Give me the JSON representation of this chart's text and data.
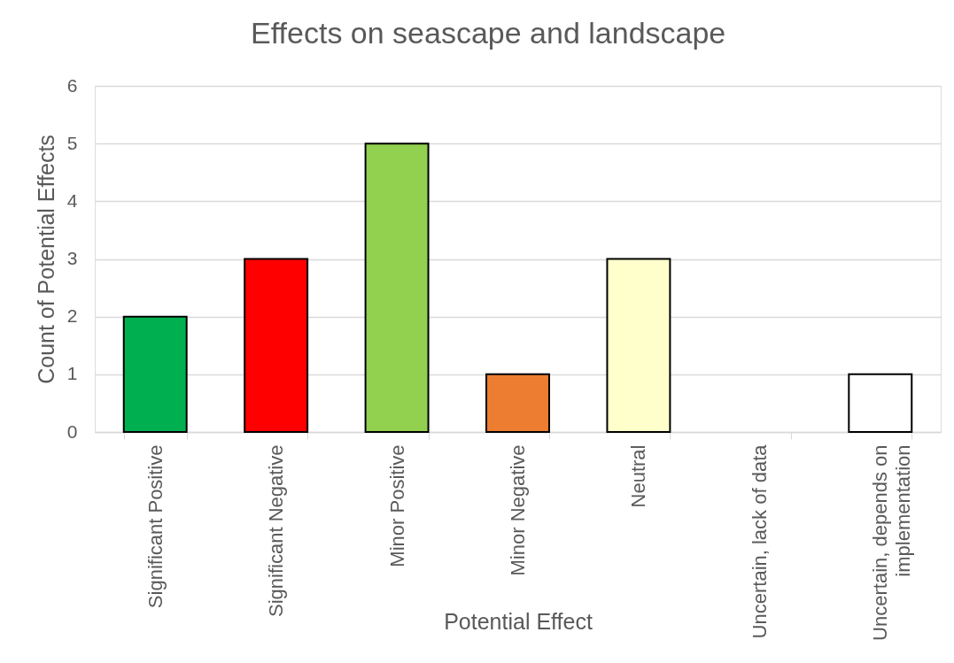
{
  "chart_data": {
    "type": "bar",
    "title": "Effects on seascape and landscape",
    "xlabel": "Potential Effect",
    "ylabel": "Count of Potential Effects",
    "categories": [
      "Significant Positive",
      "Significant Negative",
      "Minor Positive",
      "Minor Negative",
      "Neutral",
      "Uncertain, lack of data",
      "Uncertain, depends on implementation"
    ],
    "values": [
      2,
      3,
      5,
      1,
      3,
      0,
      1
    ],
    "colors": [
      "#00b050",
      "#ff0000",
      "#92d050",
      "#ed7d31",
      "#ffffcc",
      "#ffffff",
      "#ffffff"
    ],
    "ylim": [
      0,
      6
    ],
    "yticks": [
      0,
      1,
      2,
      3,
      4,
      5,
      6
    ],
    "grid": "y"
  }
}
